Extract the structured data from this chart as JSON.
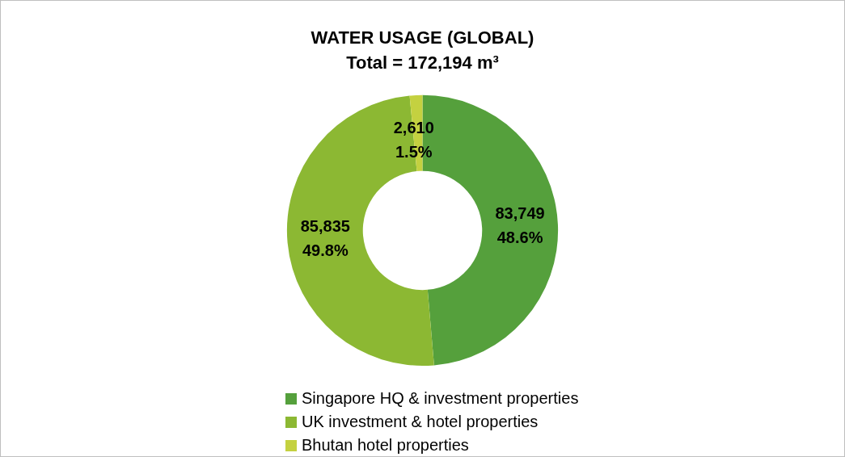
{
  "chart_data": {
    "type": "donut",
    "title": "WATER USAGE (GLOBAL)",
    "subtitle": "Total = 172,194 m³",
    "categories": [
      "Singapore HQ & investment properties",
      "UK investment & hotel properties",
      "Bhutan hotel properties"
    ],
    "values": [
      83749,
      85835,
      2610
    ],
    "colors": [
      "#55a03c",
      "#8cb833",
      "#c4d140"
    ],
    "value_labels": [
      "83,749\n48.6%",
      "85,835\n49.8%",
      "2,610\n1.5%"
    ],
    "legend": "bottom"
  }
}
